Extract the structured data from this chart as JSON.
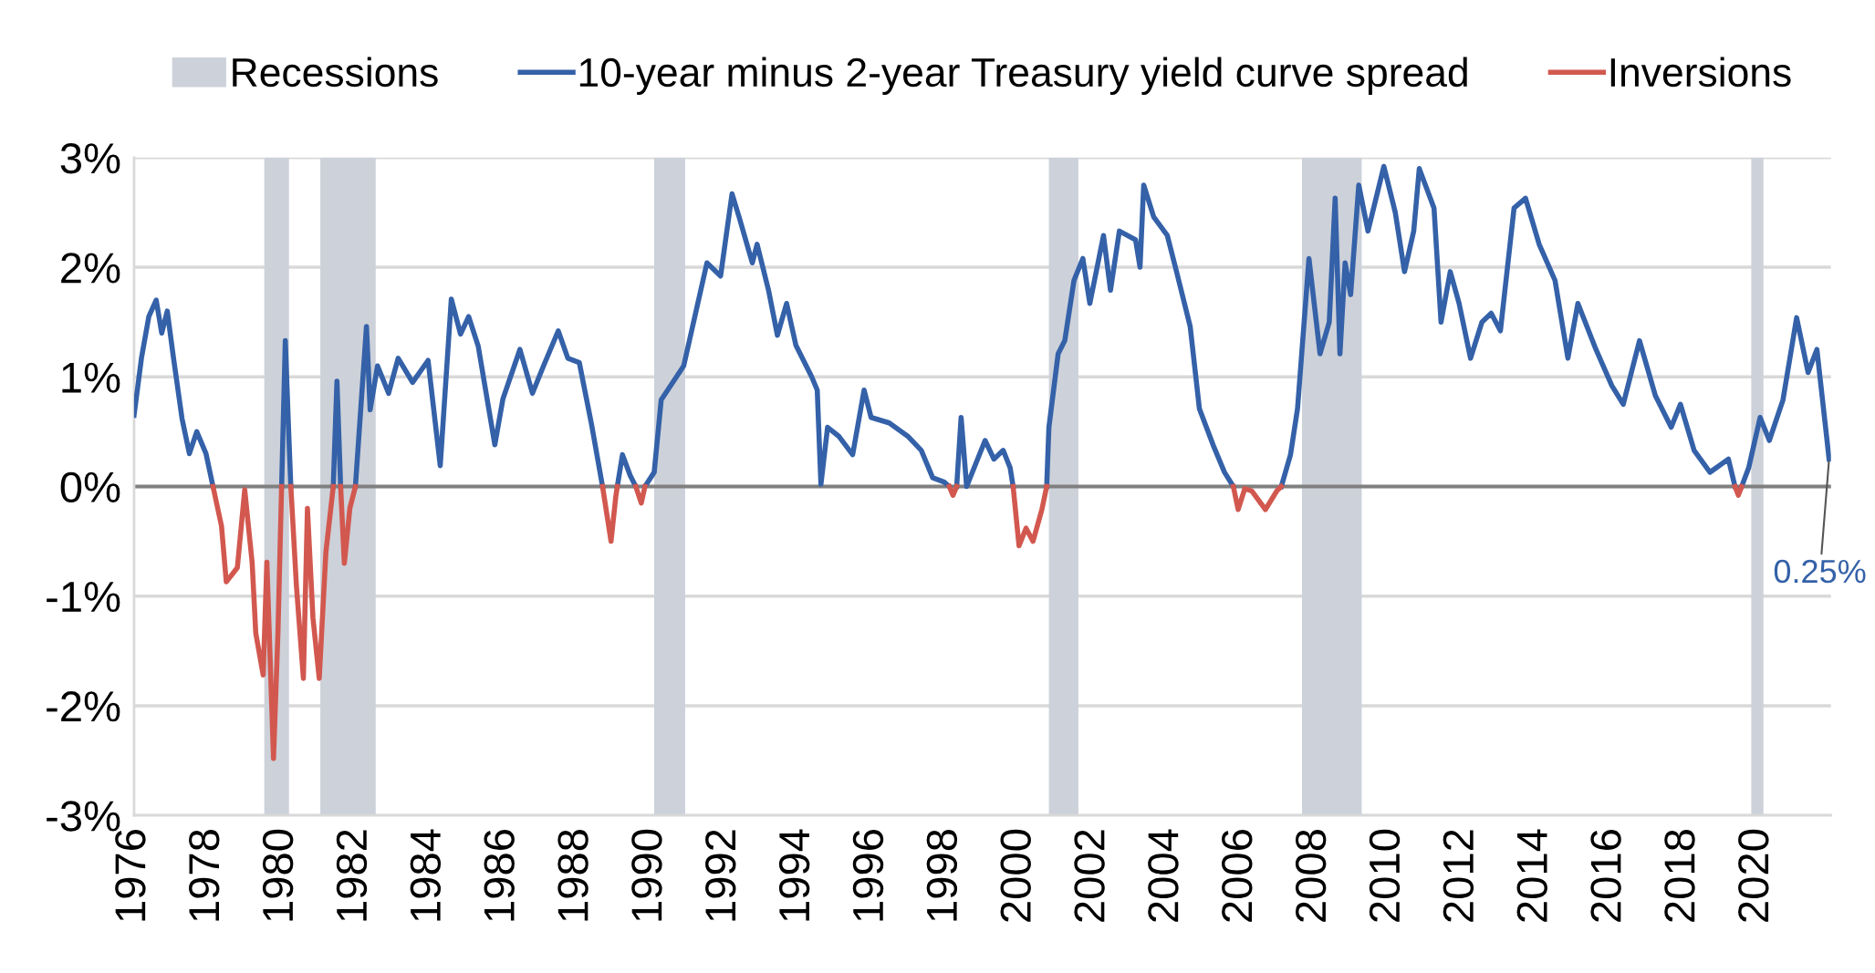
{
  "chart_data": {
    "type": "line",
    "series": [
      {
        "name": "10-year minus 2-year Treasury yield curve spread",
        "color": "#3461a8",
        "x": [
          1976.0,
          1976.2,
          1976.4,
          1976.6,
          1976.75,
          1976.9,
          1977.07,
          1977.3,
          1977.5,
          1977.7,
          1977.95,
          1978.14,
          null,
          1980.0,
          1980.1,
          1980.18,
          1980.25,
          null,
          1981.4,
          1981.5,
          1981.6,
          null,
          1982.0,
          1982.3,
          1982.4,
          1982.6,
          1982.9,
          1983.16,
          1983.55,
          1983.97,
          1984.3,
          1984.6,
          1984.85,
          1985.07,
          1985.33,
          1985.78,
          1986.0,
          1986.46,
          1986.8,
          1987.1,
          1987.5,
          1987.76,
          1988.07,
          1988.4,
          1988.7,
          null,
          1989.1,
          1989.24,
          1989.45,
          1989.6,
          null,
          1989.85,
          1990.1,
          1990.29,
          1990.9,
          1991.53,
          1991.9,
          1992.21,
          1992.4,
          1992.76,
          1992.89,
          1993.2,
          1993.44,
          1993.69,
          1993.94,
          1994.37,
          1994.52,
          1994.62,
          1994.8,
          1995.1,
          1995.48,
          1995.79,
          1995.98,
          1996.47,
          1996.97,
          1997.34,
          1997.65,
          1997.96,
          1998.1,
          null,
          1998.3,
          1998.42,
          1998.57,
          1998.82,
          1999.07,
          1999.31,
          1999.56,
          1999.75,
          1999.83,
          null,
          2000.74,
          2000.8,
          2001.05,
          2001.23,
          2001.48,
          2001.72,
          2001.91,
          2002.28,
          2002.47,
          2002.71,
          2003.15,
          2003.27,
          2003.37,
          2003.64,
          2004.01,
          2004.26,
          2004.63,
          2004.88,
          2005.25,
          2005.56,
          2005.8,
          null,
          2007.1,
          2007.35,
          2007.54,
          2007.85,
          2008.15,
          2008.4,
          2008.56,
          2008.69,
          2008.83,
          2008.98,
          2009.2,
          2009.45,
          2009.88,
          2010.19,
          2010.44,
          2010.69,
          2010.84,
          2011.24,
          2011.43,
          2011.68,
          2011.92,
          2012.23,
          2012.54,
          2012.79,
          2013.04,
          2013.41,
          2013.72,
          2014.09,
          2014.52,
          2014.87,
          2015.14,
          2015.63,
          2016.06,
          2016.37,
          2016.81,
          2017.24,
          2017.67,
          2017.92,
          2018.29,
          2018.72,
          2019.22,
          2019.4,
          null,
          2019.58,
          2019.77,
          2020.08,
          2020.33,
          2020.7,
          2021.07,
          2021.38,
          2021.62,
          2021.95
        ],
        "values": [
          0.65,
          1.17,
          1.55,
          1.7,
          1.4,
          1.6,
          1.17,
          0.62,
          0.3,
          0.5,
          0.3,
          0.0,
          null,
          0.0,
          1.33,
          0.6,
          0.0,
          null,
          0.0,
          0.96,
          0.0,
          null,
          0.0,
          1.46,
          0.7,
          1.1,
          0.85,
          1.17,
          0.95,
          1.15,
          0.19,
          1.71,
          1.39,
          1.55,
          1.28,
          0.38,
          0.8,
          1.25,
          0.85,
          1.1,
          1.42,
          1.17,
          1.13,
          0.57,
          0.0,
          null,
          0.0,
          0.29,
          0.1,
          0.0,
          null,
          0.0,
          0.13,
          0.79,
          1.1,
          2.04,
          1.92,
          2.67,
          2.46,
          2.04,
          2.21,
          1.79,
          1.38,
          1.67,
          1.29,
          1.0,
          0.88,
          0.02,
          0.54,
          0.46,
          0.29,
          0.88,
          0.63,
          0.58,
          0.46,
          0.33,
          0.08,
          0.04,
          0.0,
          null,
          0.0,
          0.63,
          0.0,
          0.21,
          0.42,
          0.25,
          0.33,
          0.17,
          0.0,
          null,
          0.0,
          0.54,
          1.21,
          1.33,
          1.88,
          2.08,
          1.67,
          2.29,
          1.79,
          2.33,
          2.25,
          2.0,
          2.75,
          2.46,
          2.29,
          1.96,
          1.46,
          0.71,
          0.38,
          0.13,
          0.0,
          null,
          0.0,
          0.29,
          0.71,
          2.08,
          1.21,
          1.5,
          2.63,
          1.21,
          2.04,
          1.75,
          2.75,
          2.33,
          2.92,
          2.5,
          1.96,
          2.33,
          2.9,
          2.54,
          1.5,
          1.96,
          1.67,
          1.17,
          1.5,
          1.58,
          1.42,
          2.54,
          2.63,
          2.21,
          1.88,
          1.17,
          1.67,
          1.25,
          0.92,
          0.75,
          1.33,
          0.83,
          0.54,
          0.75,
          0.33,
          0.13,
          0.25,
          0.0,
          null,
          0.0,
          0.17,
          0.63,
          0.42,
          0.79,
          1.54,
          1.04,
          1.25,
          0.25
        ]
      },
      {
        "name": "Inversions",
        "color": "#d2584f",
        "x": [
          1978.14,
          1978.37,
          1978.5,
          1978.8,
          1979.0,
          1979.2,
          1979.3,
          1979.5,
          1979.6,
          1979.78,
          1979.9,
          1980.0,
          null,
          1980.25,
          1980.4,
          1980.59,
          1980.7,
          1980.85,
          1981.02,
          1981.2,
          1981.4,
          null,
          1981.6,
          1981.7,
          1981.85,
          1982.0,
          null,
          1988.7,
          1988.93,
          1989.06,
          1989.1,
          null,
          1989.6,
          1989.75,
          1989.85,
          null,
          1998.1,
          1998.2,
          1998.3,
          null,
          1999.83,
          1999.99,
          2000.18,
          2000.37,
          2000.61,
          2000.74,
          null,
          2005.8,
          2005.93,
          2006.11,
          2006.3,
          2006.67,
          2006.98,
          2007.1,
          null,
          2019.4,
          2019.49,
          2019.58
        ],
        "values": [
          0.0,
          -0.36,
          -0.87,
          -0.74,
          -0.03,
          -0.69,
          -1.34,
          -1.72,
          -0.69,
          -2.48,
          -1.34,
          0.0,
          null,
          0.0,
          -0.9,
          -1.75,
          -0.2,
          -1.2,
          -1.75,
          -0.6,
          0.0,
          null,
          0.0,
          -0.7,
          -0.2,
          0.0,
          null,
          0.0,
          -0.5,
          -0.09,
          0.0,
          null,
          0.0,
          -0.15,
          0.0,
          null,
          0.0,
          -0.08,
          0.0,
          null,
          0.0,
          -0.54,
          -0.38,
          -0.5,
          -0.21,
          0.0,
          null,
          0.0,
          -0.21,
          -0.02,
          -0.04,
          -0.21,
          -0.04,
          0.0,
          null,
          0.0,
          -0.08,
          0.0
        ]
      }
    ],
    "bands": [
      {
        "axis": "x",
        "from": 1979.53,
        "to": 1980.2,
        "label": "Recessions",
        "color": "#cdd1d9"
      },
      {
        "axis": "x",
        "from": 1981.05,
        "to": 1982.55,
        "color": "#cdd1d9"
      },
      {
        "axis": "x",
        "from": 1990.1,
        "to": 1990.94,
        "color": "#cdd1d9"
      },
      {
        "axis": "x",
        "from": 2000.8,
        "to": 2001.6,
        "color": "#cdd1d9"
      },
      {
        "axis": "x",
        "from": 2007.66,
        "to": 2009.28,
        "color": "#cdd1d9"
      },
      {
        "axis": "x",
        "from": 2019.84,
        "to": 2020.17,
        "color": "#cdd1d9"
      }
    ],
    "ref_lines": [
      {
        "axis": "y",
        "value": 0,
        "color": "#808080",
        "line_style": "solid"
      }
    ],
    "annotations": [
      {
        "text": "0.25%",
        "x": 2021.95,
        "y": 0.25
      }
    ],
    "xlim": [
      1976,
      2022
    ],
    "xticks": [
      1976,
      1978,
      1980,
      1982,
      1984,
      1986,
      1988,
      1990,
      1992,
      1994,
      1996,
      1998,
      2000,
      2002,
      2004,
      2006,
      2008,
      2010,
      2012,
      2014,
      2016,
      2018,
      2020
    ],
    "ylim": [
      -3,
      3
    ],
    "yticks": [
      {
        "value": -3,
        "label": "-3%"
      },
      {
        "value": -2,
        "label": "-2%"
      },
      {
        "value": -1,
        "label": "-1%"
      },
      {
        "value": 0,
        "label": "0%"
      },
      {
        "value": 1,
        "label": "1%"
      },
      {
        "value": 2,
        "label": "2%"
      },
      {
        "value": 3,
        "label": "3%"
      }
    ],
    "grid": "y",
    "legend": "top",
    "line_style": "solid",
    "marker": "none"
  }
}
